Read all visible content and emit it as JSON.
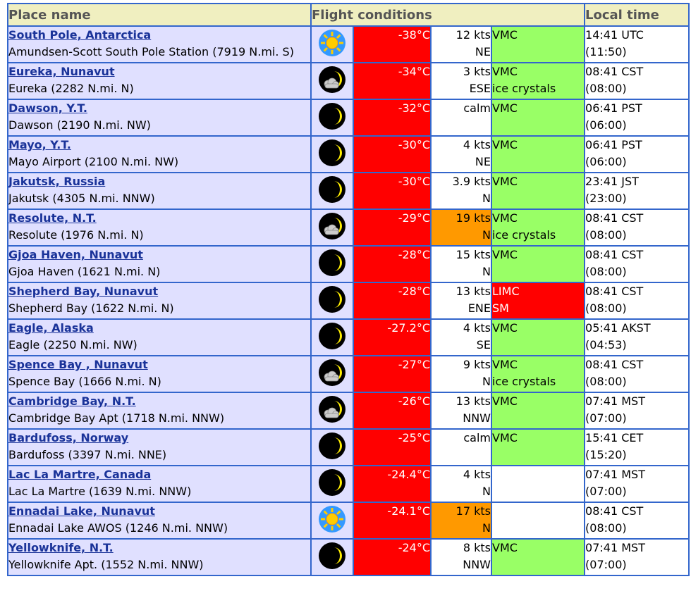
{
  "headers": {
    "place": "Place name",
    "flight": "Flight conditions",
    "time": "Local time"
  },
  "rows": [
    {
      "name": "South Pole, Antarctica",
      "station": "Amundsen-Scott South Pole Station (7919 N.mi. S)",
      "icon": "sun-icon",
      "temp": "-38°C",
      "wind_speed": "12 kts",
      "wind_dir": "NE",
      "wind_warn": false,
      "cond1": "VMC",
      "cond2": "",
      "cond_style": "green",
      "time1": "14:41 UTC",
      "time2": "(11:50)"
    },
    {
      "name": "Eureka, Nunavut",
      "station": "Eureka (2282 N.mi. N)",
      "icon": "moon-cloud-icon",
      "temp": "-34°C",
      "wind_speed": "3 kts",
      "wind_dir": "ESE",
      "wind_warn": false,
      "cond1": "VMC",
      "cond2": "ice crystals",
      "cond_style": "green",
      "time1": "08:41 CST",
      "time2": "(08:00)"
    },
    {
      "name": "Dawson, Y.T.",
      "station": "Dawson (2190 N.mi. NW)",
      "icon": "moon-icon",
      "temp": "-32°C",
      "wind_speed": "calm",
      "wind_dir": "",
      "wind_warn": false,
      "cond1": "VMC",
      "cond2": "",
      "cond_style": "green",
      "time1": "06:41 PST",
      "time2": "(06:00)"
    },
    {
      "name": "Mayo, Y.T.",
      "station": "Mayo Airport (2100 N.mi. NW)",
      "icon": "moon-icon",
      "temp": "-30°C",
      "wind_speed": "4 kts",
      "wind_dir": "NE",
      "wind_warn": false,
      "cond1": "VMC",
      "cond2": "",
      "cond_style": "green",
      "time1": "06:41 PST",
      "time2": "(06:00)"
    },
    {
      "name": "Jakutsk, Russia",
      "station": "Jakutsk (4305 N.mi. NNW)",
      "icon": "moon-icon",
      "temp": "-30°C",
      "wind_speed": "3.9 kts",
      "wind_dir": "N",
      "wind_warn": false,
      "cond1": "VMC",
      "cond2": "",
      "cond_style": "green",
      "time1": "23:41 JST",
      "time2": "(23:00)"
    },
    {
      "name": "Resolute, N.T.",
      "station": "Resolute (1976 N.mi. N)",
      "icon": "moon-cloud-icon",
      "temp": "-29°C",
      "wind_speed": "19 kts",
      "wind_dir": "N",
      "wind_warn": true,
      "cond1": "VMC",
      "cond2": "ice crystals",
      "cond_style": "green",
      "time1": "08:41 CST",
      "time2": "(08:00)"
    },
    {
      "name": "Gjoa Haven, Nunavut",
      "station": "Gjoa Haven (1621 N.mi. N)",
      "icon": "moon-icon",
      "temp": "-28°C",
      "wind_speed": "15 kts",
      "wind_dir": "N",
      "wind_warn": false,
      "cond1": "VMC",
      "cond2": "",
      "cond_style": "green",
      "time1": "08:41 CST",
      "time2": "(08:00)"
    },
    {
      "name": "Shepherd Bay, Nunavut",
      "station": "Shepherd Bay (1622 N.mi. N)",
      "icon": "moon-icon",
      "temp": "-28°C",
      "wind_speed": "13 kts",
      "wind_dir": "ENE",
      "wind_warn": false,
      "cond1": "LIMC",
      "cond2": "SM",
      "cond_style": "red",
      "time1": "08:41 CST",
      "time2": "(08:00)"
    },
    {
      "name": "Eagle, Alaska",
      "station": "Eagle (2250 N.mi. NW)",
      "icon": "moon-icon",
      "temp": "-27.2°C",
      "wind_speed": "4 kts",
      "wind_dir": "SE",
      "wind_warn": false,
      "cond1": "VMC",
      "cond2": "",
      "cond_style": "green",
      "time1": "05:41 AKST",
      "time2": "(04:53)"
    },
    {
      "name": "Spence Bay , Nunavut",
      "station": "Spence Bay (1666 N.mi. N)",
      "icon": "moon-cloud-icon",
      "temp": "-27°C",
      "wind_speed": "9 kts",
      "wind_dir": "N",
      "wind_warn": false,
      "cond1": "VMC",
      "cond2": "ice crystals",
      "cond_style": "green",
      "time1": "08:41 CST",
      "time2": "(08:00)"
    },
    {
      "name": "Cambridge Bay, N.T.",
      "station": "Cambridge Bay Apt (1718 N.mi. NNW)",
      "icon": "moon-cloud-icon",
      "temp": "-26°C",
      "wind_speed": "13 kts",
      "wind_dir": "NNW",
      "wind_warn": false,
      "cond1": "VMC",
      "cond2": "",
      "cond_style": "green",
      "time1": "07:41 MST",
      "time2": "(07:00)"
    },
    {
      "name": "Bardufoss, Norway",
      "station": "Bardufoss (3397 N.mi. NNE)",
      "icon": "moon-icon",
      "temp": "-25°C",
      "wind_speed": "calm",
      "wind_dir": "",
      "wind_warn": false,
      "cond1": "VMC",
      "cond2": "",
      "cond_style": "green",
      "time1": "15:41 CET",
      "time2": "(15:20)"
    },
    {
      "name": "Lac La Martre, Canada",
      "station": "Lac La Martre (1639 N.mi. NNW)",
      "icon": "moon-icon",
      "temp": "-24.4°C",
      "wind_speed": "4 kts",
      "wind_dir": "N",
      "wind_warn": false,
      "cond1": "",
      "cond2": "",
      "cond_style": "blank",
      "time1": "07:41 MST",
      "time2": "(07:00)"
    },
    {
      "name": "Ennadai Lake, Nunavut",
      "station": "Ennadai Lake AWOS (1246 N.mi. NNW)",
      "icon": "sun-icon",
      "temp": "-24.1°C",
      "wind_speed": "17 kts",
      "wind_dir": "N",
      "wind_warn": true,
      "cond1": "",
      "cond2": "",
      "cond_style": "blank",
      "time1": "08:41 CST",
      "time2": "(08:00)"
    },
    {
      "name": "Yellowknife, N.T.",
      "station": "Yellowknife Apt. (1552 N.mi. NNW)",
      "icon": "moon-icon",
      "temp": "-24°C",
      "wind_speed": "8 kts",
      "wind_dir": "NNW",
      "wind_warn": false,
      "cond1": "VMC",
      "cond2": "",
      "cond_style": "green",
      "time1": "07:41 MST",
      "time2": "(07:00)"
    }
  ],
  "colors": {
    "header_bg": "#f0efc0",
    "place_bg": "#e0e0ff",
    "temp_bg": "#ff0000",
    "vmc_bg": "#99ff66",
    "wind_warn_bg": "#ff9900",
    "border": "#3366cc"
  }
}
